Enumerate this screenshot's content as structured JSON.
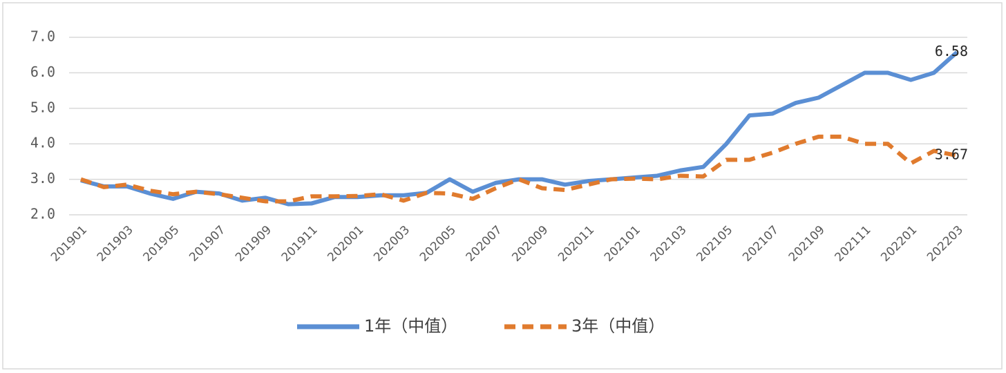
{
  "chart_data": {
    "type": "line",
    "categories": [
      "201901",
      null,
      "201903",
      null,
      "201905",
      null,
      "201907",
      null,
      "201909",
      null,
      "201911",
      null,
      "202001",
      null,
      "202003",
      null,
      "202005",
      null,
      "202007",
      null,
      "202009",
      null,
      "202011",
      null,
      "202101",
      null,
      "202103",
      null,
      "202105",
      null,
      "202107",
      null,
      "202109",
      null,
      "202111",
      null,
      "202201",
      null,
      "202203"
    ],
    "series": [
      {
        "name": "1年（中值）",
        "color": "#5b8fd4",
        "style": "solid",
        "values": [
          2.97,
          2.8,
          2.8,
          2.6,
          2.45,
          2.65,
          2.6,
          2.4,
          2.48,
          2.3,
          2.32,
          2.5,
          2.5,
          2.55,
          2.55,
          2.62,
          3.0,
          2.65,
          2.9,
          3.0,
          3.0,
          2.85,
          2.95,
          3.0,
          3.05,
          3.1,
          3.25,
          3.35,
          4.0,
          4.8,
          4.85,
          5.15,
          5.3,
          5.65,
          6.0,
          6.0,
          5.8,
          6.0,
          6.58
        ]
      },
      {
        "name": "3年（中值）",
        "color": "#e07b2e",
        "style": "dashed",
        "values": [
          3.0,
          2.78,
          2.85,
          2.68,
          2.58,
          2.65,
          2.58,
          2.48,
          2.38,
          2.38,
          2.52,
          2.52,
          2.53,
          2.58,
          2.4,
          2.62,
          2.6,
          2.45,
          2.75,
          3.0,
          2.75,
          2.7,
          2.85,
          3.0,
          3.02,
          3.0,
          3.1,
          3.08,
          3.55,
          3.55,
          3.75,
          4.0,
          4.2,
          4.2,
          4.0,
          4.0,
          3.45,
          3.8,
          3.67
        ]
      }
    ],
    "ylim": [
      2.0,
      7.0
    ],
    "yticks": [
      {
        "value": 2,
        "label": "2.0"
      },
      {
        "value": 3,
        "label": "3.0"
      },
      {
        "value": 4,
        "label": "4.0"
      },
      {
        "value": 5,
        "label": "5.0"
      },
      {
        "value": 6,
        "label": "6.0"
      },
      {
        "value": 7,
        "label": "7.0"
      }
    ],
    "grid": true,
    "legend": "bottom"
  }
}
